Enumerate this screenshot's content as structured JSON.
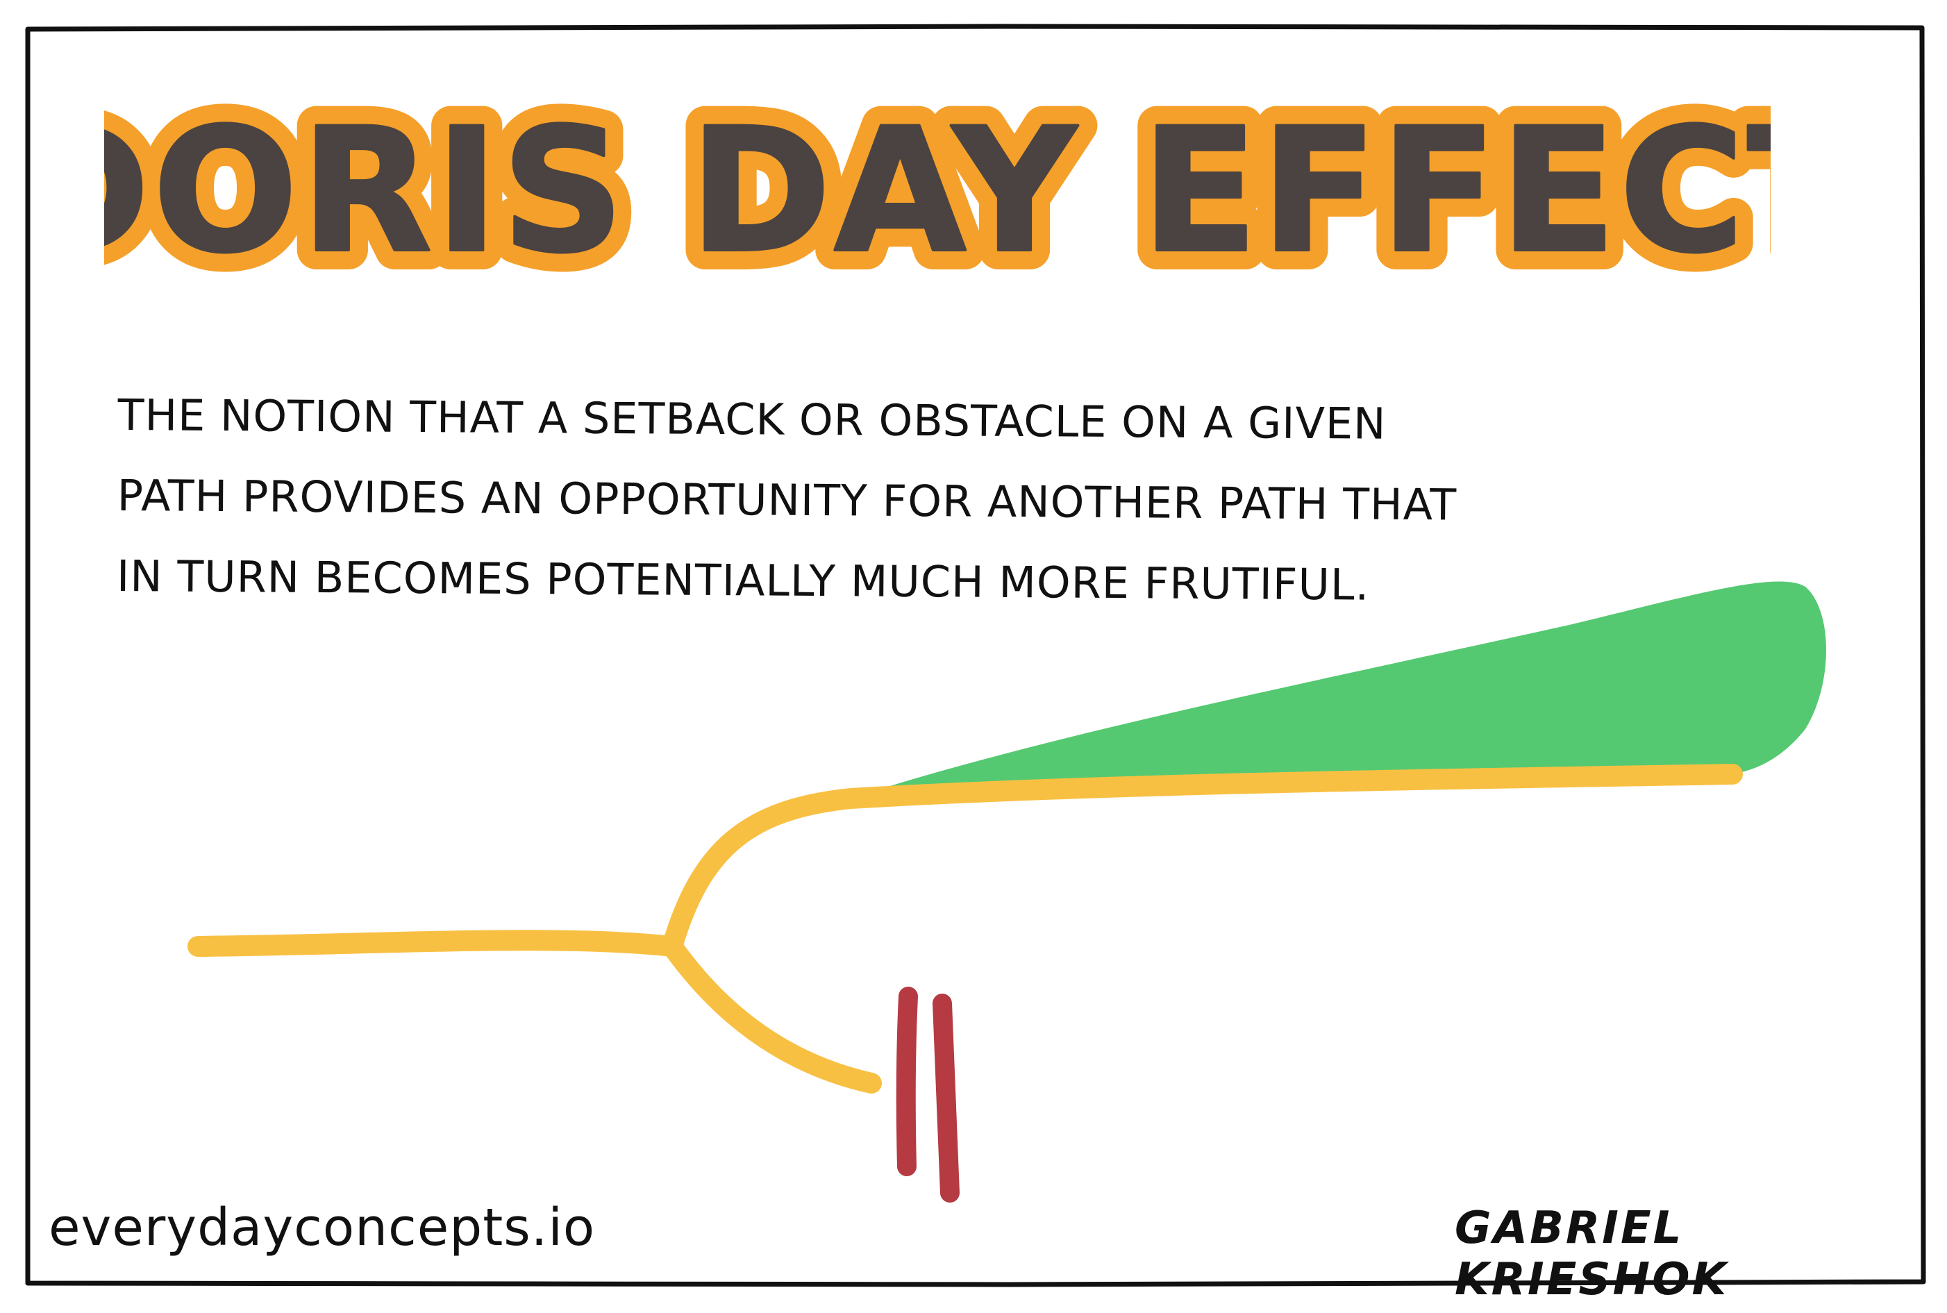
{
  "title": "DORIS DAY EFFECT",
  "definition": "THE NOTION THAT A SETBACK OR OBSTACLE ON A GIVEN PATH PROVIDES AN OPPORTUNITY FOR ANOTHER PATH THAT IN TURN BECOMES POTENTIALLY MUCH MORE FRUTIFUL.",
  "definition_lines": [
    "THE NOTION THAT A SETBACK OR OBSTACLE ON A GIVEN",
    "PATH PROVIDES AN OPPORTUNITY FOR ANOTHER PATH THAT",
    "IN TURN BECOMES POTENTIALLY MUCH MORE FRUTIFUL."
  ],
  "footer": {
    "website": "everydayconcepts.io",
    "author": "GABRIEL KRIESHOK"
  },
  "colors": {
    "frame": "#111111",
    "title_text": "#4a4341",
    "title_outline": "#f5a02b",
    "path": "#f8c042",
    "growth_area": "#55c971",
    "obstacle": "#b53a41",
    "text": "#111111",
    "background": "#ffffff"
  },
  "diagram": {
    "elements": [
      "initial-path",
      "fork-point",
      "blocked-branch",
      "obstacle-barrier",
      "alternate-branch",
      "growth-area"
    ]
  }
}
